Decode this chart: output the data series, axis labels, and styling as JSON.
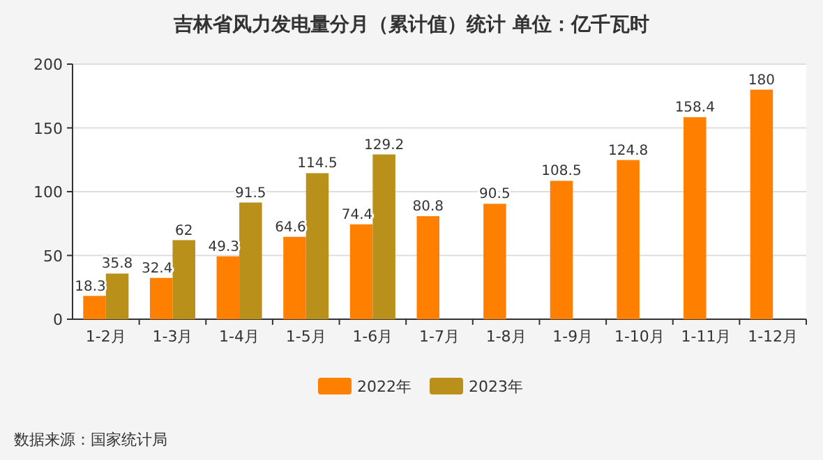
{
  "chart_data": {
    "type": "bar",
    "title": "吉林省风力发电量分月（累计值）统计 单位：亿千瓦时",
    "categories": [
      "1-2月",
      "1-3月",
      "1-4月",
      "1-5月",
      "1-6月",
      "1-7月",
      "1-8月",
      "1-9月",
      "1-10月",
      "1-11月",
      "1-12月"
    ],
    "series": [
      {
        "name": "2022年",
        "color": "#ff8000",
        "values": [
          18.3,
          32.4,
          49.3,
          64.6,
          74.4,
          80.8,
          90.5,
          108.5,
          124.8,
          158.4,
          180
        ]
      },
      {
        "name": "2023年",
        "color": "#b8901a",
        "values": [
          35.8,
          62,
          91.5,
          114.5,
          129.2,
          null,
          null,
          null,
          null,
          null,
          null
        ]
      }
    ],
    "ylim": [
      0,
      200
    ],
    "yticks": [
      0,
      50,
      100,
      150,
      200
    ],
    "grid": "y",
    "legend": "bottom",
    "data_labels": true,
    "annotations": [
      "数据来源：国家统计局"
    ]
  }
}
